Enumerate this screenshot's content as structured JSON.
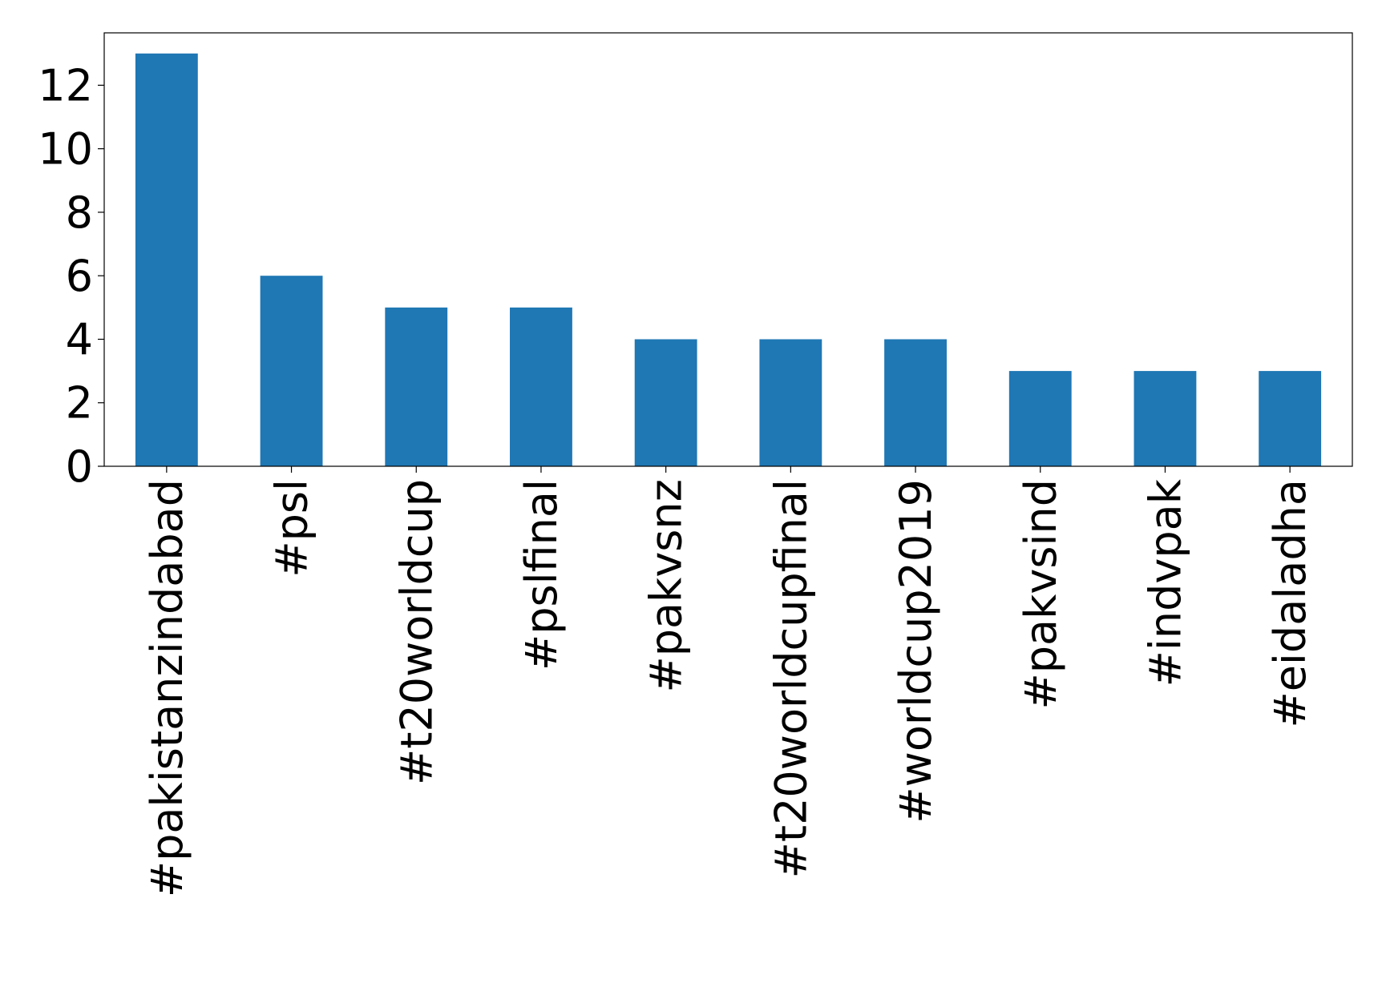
{
  "chart_data": {
    "type": "bar",
    "categories": [
      "#pakistanzindabad",
      "#psl",
      "#t20worldcup",
      "#pslfinal",
      "#pakvsnz",
      "#t20worldcupfinal",
      "#worldcup2019",
      "#pakvsind",
      "#indvpak",
      "#eidaladha"
    ],
    "values": [
      13,
      6,
      5,
      5,
      4,
      4,
      4,
      3,
      3,
      3
    ],
    "color": "#1f77b4",
    "ylim": [
      0,
      13.65
    ],
    "yticks": [
      0,
      2,
      4,
      6,
      8,
      10,
      12
    ],
    "grid": false
  }
}
